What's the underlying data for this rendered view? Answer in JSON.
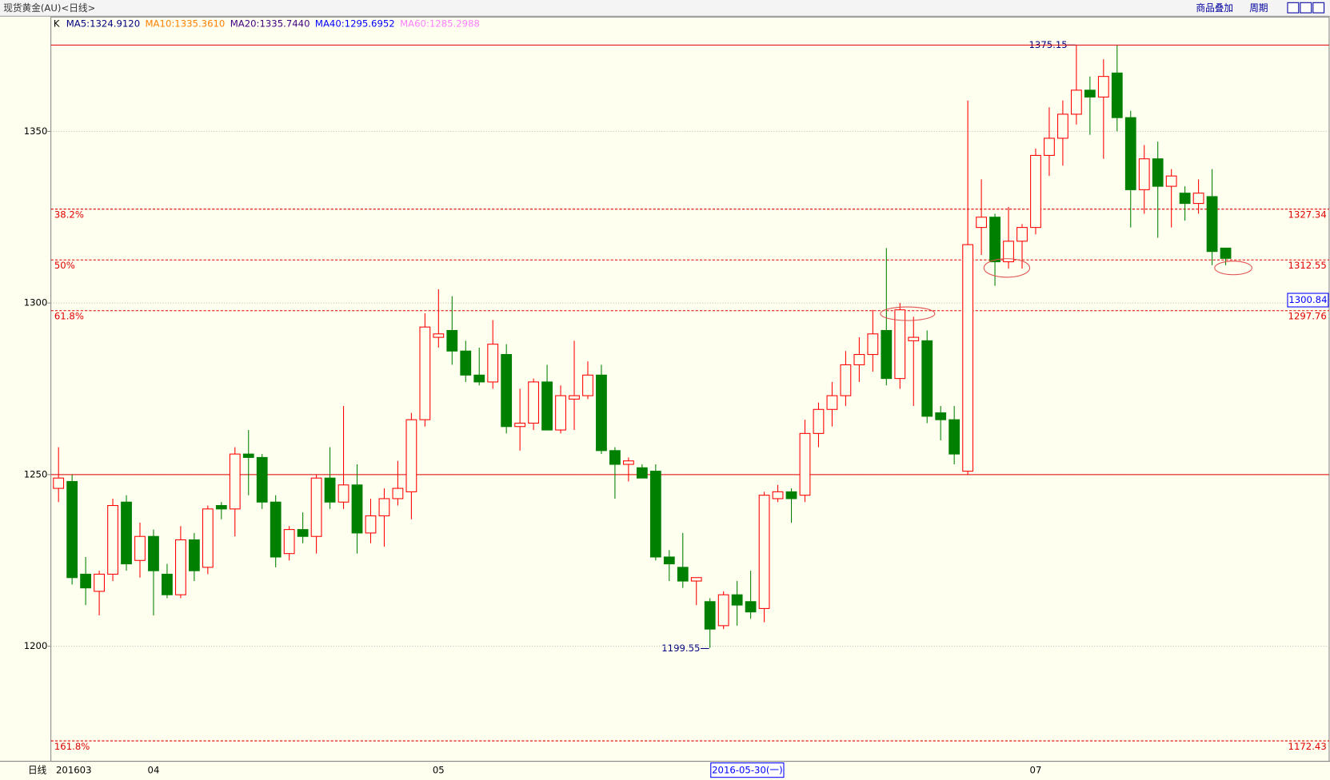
{
  "chart_data": {
    "type": "candlestick",
    "title": "现货黄金(AU)<日线>",
    "toolbar": [
      "商品叠加",
      "周期"
    ],
    "period_label": "日线",
    "cursor_label": "2016-05-30(一)",
    "header_prefix": "K",
    "ma_labels": [
      {
        "text": "MA5:1324.9120",
        "color": "#000080"
      },
      {
        "text": "MA10:1335.3610",
        "color": "#ff8000"
      },
      {
        "text": "MA20:1335.7440",
        "color": "#400080"
      },
      {
        "text": "MA40:1295.6952",
        "color": "#0000ff"
      },
      {
        "text": "MA60:1285.2988",
        "color": "#ff80ff"
      }
    ],
    "categories": [
      "201603",
      null,
      null,
      null,
      null,
      null,
      null,
      "04",
      null,
      null,
      null,
      null,
      null,
      null,
      null,
      null,
      null,
      null,
      null,
      null,
      null,
      null,
      null,
      null,
      null,
      null,
      null,
      null,
      "05",
      null,
      null,
      null,
      null,
      null,
      null,
      null,
      null,
      null,
      null,
      null,
      null,
      null,
      null,
      null,
      null,
      null,
      null,
      null,
      null,
      null,
      null,
      null,
      null,
      null,
      null,
      null,
      null,
      null,
      null,
      null,
      null,
      null,
      null,
      null,
      null,
      null,
      null,
      null,
      null,
      null,
      null,
      null,
      "07",
      null,
      null,
      null,
      null,
      null,
      null,
      null,
      null,
      null,
      null,
      null,
      null,
      null,
      null
    ],
    "open": [
      1246,
      1248,
      1221,
      1216,
      1221,
      1242,
      1225,
      1232,
      1221,
      1215,
      1231,
      1223,
      1241,
      1240,
      1256,
      1255,
      1242,
      1227,
      1234,
      1232,
      1249,
      1242,
      1247,
      1233,
      1238,
      1243,
      1245,
      1266,
      1290,
      1292,
      1286,
      1279,
      1277,
      1285,
      1264,
      1265,
      1277,
      1263,
      1272,
      1273,
      1279,
      1257,
      1253,
      1252,
      1251,
      1226,
      1223,
      1219,
      1213,
      1206,
      1215,
      1213,
      1211,
      1243,
      1245,
      1244,
      1262,
      1269,
      1273,
      1282,
      1285,
      1292,
      1278,
      1289,
      1289,
      1268,
      1266,
      1251,
      1322,
      1325,
      1312,
      1318,
      1322,
      1343,
      1348,
      1355,
      1362,
      1360,
      1367,
      1354,
      1333,
      1342,
      1334,
      1332,
      1329,
      1331,
      1316
    ],
    "high": [
      1258,
      1250,
      1226,
      1222,
      1243,
      1244,
      1236,
      1234,
      1224,
      1235,
      1233,
      1241,
      1242,
      1258,
      1263,
      1256,
      1244,
      1235,
      1239,
      1250,
      1258,
      1270,
      1253,
      1243,
      1246,
      1254,
      1268,
      1297,
      1304,
      1302,
      1289,
      1287,
      1295,
      1288,
      1275,
      1278,
      1282,
      1276,
      1289,
      1283,
      1282,
      1258,
      1255,
      1253,
      1253,
      1228,
      1233,
      1220,
      1214,
      1216,
      1219,
      1222,
      1245,
      1247,
      1246,
      1266,
      1271,
      1277,
      1286,
      1290,
      1298,
      1316,
      1300,
      1296,
      1292,
      1270,
      1270,
      1359,
      1336,
      1326,
      1328,
      1323,
      1345,
      1357,
      1359,
      1375.15,
      1366,
      1371,
      1375,
      1356,
      1346,
      1347,
      1339,
      1334,
      1336,
      1339,
      1316
    ],
    "low": [
      1242,
      1218,
      1212,
      1209,
      1219,
      1222,
      1220,
      1209,
      1214,
      1214,
      1219,
      1221,
      1237,
      1232,
      1244,
      1240,
      1223,
      1225,
      1230,
      1227,
      1240,
      1240,
      1227,
      1230,
      1229,
      1241,
      1237,
      1264,
      1287,
      1282,
      1277,
      1276,
      1275,
      1262,
      1257,
      1263,
      1263,
      1262,
      1263,
      1272,
      1256,
      1243,
      1248,
      1249,
      1225,
      1219,
      1217,
      1212,
      1199.55,
      1205,
      1206,
      1208,
      1207,
      1242,
      1236,
      1242,
      1258,
      1264,
      1270,
      1277,
      1280,
      1276,
      1275,
      1270,
      1265,
      1260,
      1253,
      1250,
      1314,
      1305,
      1310,
      1310,
      1320,
      1337,
      1340,
      1352,
      1349,
      1342,
      1350,
      1322,
      1326,
      1319,
      1322,
      1324,
      1326,
      1311,
      1311
    ],
    "close": [
      1249,
      1220,
      1217,
      1221,
      1241,
      1224,
      1232,
      1222,
      1215,
      1231,
      1222,
      1240,
      1240,
      1256,
      1255,
      1242,
      1226,
      1234,
      1232,
      1249,
      1242,
      1247,
      1233,
      1238,
      1243,
      1246,
      1266,
      1293,
      1291,
      1286,
      1279,
      1277,
      1288,
      1264,
      1265,
      1277,
      1263,
      1273,
      1273,
      1279,
      1257,
      1253,
      1254,
      1249,
      1226,
      1224,
      1219,
      1220,
      1205,
      1215,
      1212,
      1210,
      1244,
      1245,
      1243,
      1262,
      1269,
      1273,
      1282,
      1285,
      1291,
      1278,
      1298,
      1290,
      1267,
      1266,
      1256,
      1317,
      1325,
      1312,
      1318,
      1322,
      1343,
      1348,
      1355,
      1362,
      1360,
      1366,
      1354,
      1333,
      1342,
      1334,
      1337,
      1329,
      1332,
      1315,
      1313
    ],
    "up_color": "#ff0000",
    "down_color": "#008000",
    "ylim": [
      1166.5,
      1383.3
    ],
    "yticks": [
      1200,
      1250,
      1300,
      1350
    ],
    "grid": true,
    "range_lines": [
      1375.15,
      1250
    ],
    "fib_levels": [
      {
        "ratio": "38.2%",
        "value": 1327.34
      },
      {
        "ratio": "50%",
        "value": 1312.55
      },
      {
        "ratio": "61.8%",
        "value": 1297.76
      },
      {
        "ratio": "161.8%",
        "value": 1172.43
      }
    ],
    "max_label": "1375.15",
    "min_label": "1199.55",
    "last_price": 1300.84
  }
}
